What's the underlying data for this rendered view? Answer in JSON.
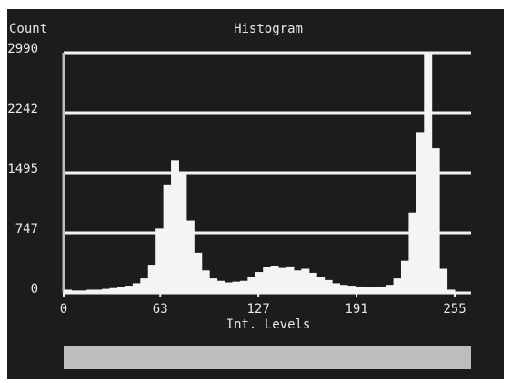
{
  "chart_data": {
    "type": "histogram",
    "title": "Histogram",
    "y_label": "Count",
    "x_label": "Int. Levels",
    "bins": [
      0,
      5,
      10,
      15,
      20,
      25,
      30,
      35,
      40,
      45,
      50,
      55,
      60,
      65,
      70,
      75,
      80,
      85,
      90,
      95,
      100,
      105,
      110,
      115,
      120,
      125,
      130,
      135,
      140,
      145,
      150,
      155,
      160,
      165,
      170,
      175,
      180,
      185,
      190,
      195,
      200,
      205,
      210,
      215,
      220,
      225,
      230,
      235,
      240,
      245,
      250,
      255
    ],
    "counts": [
      40,
      30,
      30,
      40,
      40,
      50,
      60,
      70,
      90,
      120,
      180,
      350,
      800,
      1350,
      1650,
      1500,
      900,
      500,
      280,
      180,
      150,
      130,
      140,
      150,
      200,
      260,
      320,
      340,
      310,
      330,
      280,
      300,
      250,
      200,
      160,
      120,
      100,
      90,
      80,
      70,
      70,
      80,
      100,
      180,
      400,
      1000,
      2000,
      2990,
      1800,
      300,
      40
    ],
    "color": "#f4f4f4",
    "xlim": [
      0,
      255
    ],
    "xticks": [
      0,
      63,
      127,
      191,
      255
    ],
    "ylim": [
      0,
      2990
    ],
    "yticks": [
      0,
      747,
      1495,
      2242,
      2990
    ],
    "grid": true
  }
}
